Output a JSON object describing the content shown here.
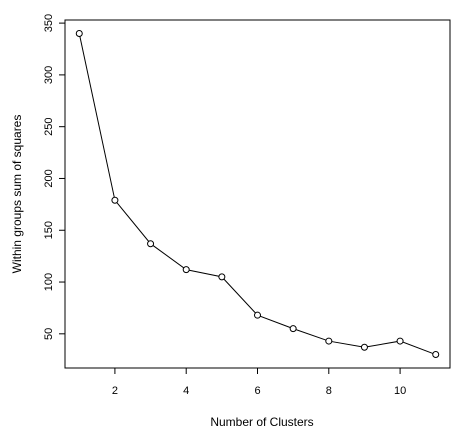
{
  "chart_data": {
    "type": "line",
    "title": "",
    "xlabel": "Number of Clusters",
    "ylabel": "Within groups sum of squares",
    "x": [
      1,
      2,
      3,
      4,
      5,
      6,
      7,
      8,
      9,
      10,
      11
    ],
    "y": [
      340,
      179,
      137,
      112,
      105,
      68,
      55,
      43,
      37,
      43,
      30
    ],
    "xlim": [
      0.6,
      11.4
    ],
    "ylim": [
      17,
      353
    ],
    "xticks": [
      2,
      4,
      6,
      8,
      10
    ],
    "yticks": [
      50,
      100,
      150,
      200,
      250,
      300,
      350
    ],
    "grid": false,
    "marker": "open-circle",
    "line_color": "#000000"
  }
}
